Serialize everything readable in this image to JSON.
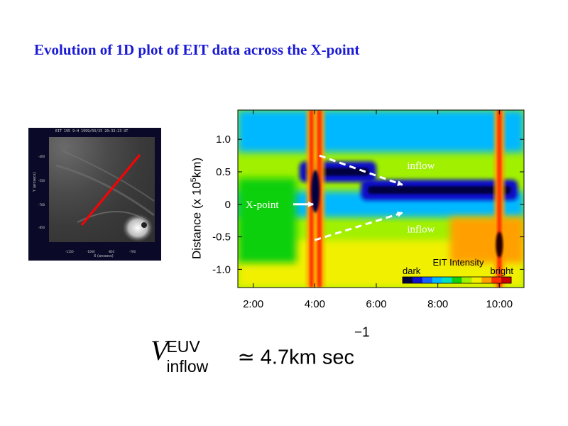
{
  "title": "Evolution of 1D plot of EIT data across the X-point",
  "thumbnail": {
    "header": "EIT  195   9-H   1999/03/25  20:33:23  UT",
    "y_label": "Y (arcsecs)",
    "x_label": "X (arcsecs)",
    "x_ticks": [
      "-1150",
      "-1000",
      "-850",
      "-700"
    ],
    "y_ticks": [
      "-400",
      "-550",
      "-700",
      "-850"
    ],
    "line_color": "#ff0000"
  },
  "chart_data": {
    "type": "heatmap",
    "ylabel": "Distance (x 10",
    "ylabel_exp": "5",
    "ylabel_unit": "km)",
    "x_ticks": [
      "2:00",
      "4:00",
      "6:00",
      "8:00",
      "10:00"
    ],
    "y_ticks": [
      "1.0",
      "0.5",
      "0",
      "-0.5",
      "-1.0"
    ],
    "x_range_hours": [
      1.5,
      10.8
    ],
    "y_range": [
      -1.28,
      1.45
    ],
    "annotations": [
      {
        "text": "inflow",
        "x_hour": 7.0,
        "y": 0.6
      },
      {
        "text": "X-point",
        "x_hour": 1.75,
        "y": 0.0
      },
      {
        "text": "inflow",
        "x_hour": 7.0,
        "y": -0.38
      }
    ],
    "arrows": [
      {
        "from_hour": 4.15,
        "from_y": 0.75,
        "to_hour": 6.85,
        "to_y": 0.3
      },
      {
        "from_hour": 3.3,
        "from_y": 0.0,
        "to_hour": 3.95,
        "to_y": 0.0
      },
      {
        "from_hour": 4.0,
        "from_y": -0.55,
        "to_hour": 6.85,
        "to_y": -0.13
      }
    ],
    "colorbar": {
      "title": "EIT Intensity",
      "low_label": "dark",
      "high_label": "bright",
      "colors": [
        "#000040",
        "#1010c8",
        "#1460ff",
        "#00b8ff",
        "#00e0c0",
        "#10d010",
        "#a0f000",
        "#f0f000",
        "#ffa000",
        "#ff3000",
        "#c80000"
      ]
    },
    "features": [
      {
        "kind": "bright_column",
        "hour": 3.9
      },
      {
        "kind": "bright_column",
        "hour": 4.15
      },
      {
        "kind": "bright_column",
        "hour": 10.0
      },
      {
        "kind": "dark_band",
        "y": 0.5,
        "from_hour": 3.5,
        "to_hour": 6.0
      },
      {
        "kind": "dark_band",
        "y": 0.22,
        "from_hour": 5.5,
        "to_hour": 10.6
      }
    ]
  },
  "formula": {
    "v": "V",
    "sup": "EUV",
    "sub": "inflow",
    "rhs": "≃ 4.7km  sec",
    "exp": "−1"
  }
}
